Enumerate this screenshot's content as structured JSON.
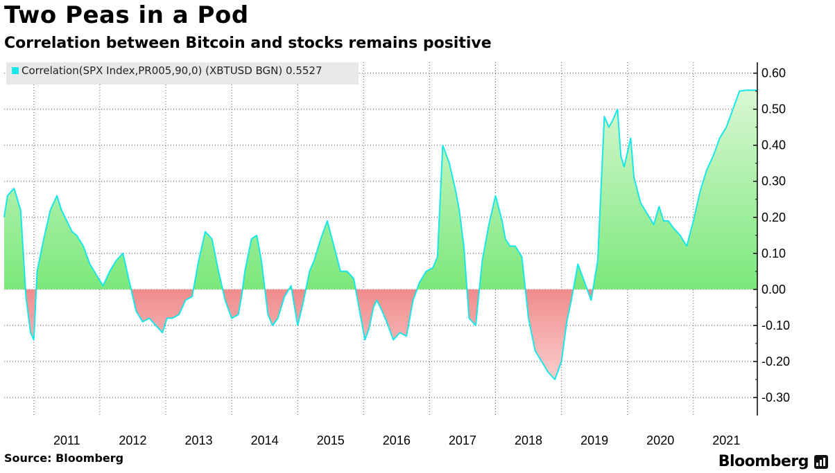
{
  "header": {
    "title": "Two Peas in a Pod",
    "subtitle": "Correlation between Bitcoin and stocks remains positive"
  },
  "footer": {
    "source": "Source: Bloomberg",
    "brand": "Bloomberg"
  },
  "colors": {
    "line": "#19e6e6",
    "positive_fill_top": "#d9f7d3",
    "positive_fill_bottom": "#7be87b",
    "negative_fill_top": "#f08c8c",
    "negative_fill_bottom": "#fbd3d3",
    "grid": "#555555"
  },
  "chart_data": {
    "type": "area",
    "title": "Two Peas in a Pod",
    "subtitle": "Correlation between Bitcoin and stocks remains positive",
    "legend": {
      "label": "Correlation(SPX Index,PR005,90,0) (XBTUSD BGN) 0.5527",
      "placement": "top-left"
    },
    "series": [
      {
        "name": "Correlation(SPX Index,PR005,90,0) (XBTUSD BGN)",
        "last_value": 0.5527,
        "x": [
          2010.55,
          2010.6,
          2010.7,
          2010.8,
          2010.88,
          2010.95,
          2011.0,
          2011.05,
          2011.15,
          2011.25,
          2011.35,
          2011.42,
          2011.5,
          2011.58,
          2011.65,
          2011.75,
          2011.85,
          2011.95,
          2012.05,
          2012.15,
          2012.25,
          2012.35,
          2012.45,
          2012.55,
          2012.65,
          2012.75,
          2012.85,
          2012.95,
          2013.02,
          2013.1,
          2013.2,
          2013.3,
          2013.4,
          2013.5,
          2013.6,
          2013.7,
          2013.8,
          2013.9,
          2014.0,
          2014.1,
          2014.15,
          2014.2,
          2014.3,
          2014.38,
          2014.45,
          2014.55,
          2014.62,
          2014.7,
          2014.8,
          2014.9,
          2015.0,
          2015.08,
          2015.18,
          2015.25,
          2015.35,
          2015.45,
          2015.55,
          2015.65,
          2015.75,
          2015.85,
          2015.95,
          2016.02,
          2016.08,
          2016.15,
          2016.2,
          2016.28,
          2016.35,
          2016.45,
          2016.55,
          2016.65,
          2016.75,
          2016.85,
          2016.95,
          2017.05,
          2017.12,
          2017.2,
          2017.3,
          2017.4,
          2017.45,
          2017.52,
          2017.6,
          2017.7,
          2017.8,
          2017.9,
          2018.0,
          2018.1,
          2018.15,
          2018.22,
          2018.3,
          2018.4,
          2018.5,
          2018.6,
          2018.7,
          2018.8,
          2018.9,
          2019.0,
          2019.08,
          2019.15,
          2019.25,
          2019.35,
          2019.45,
          2019.55,
          2019.65,
          2019.72,
          2019.78,
          2019.85,
          2019.9,
          2019.95,
          2020.0,
          2020.05,
          2020.1,
          2020.2,
          2020.3,
          2020.4,
          2020.48,
          2020.55,
          2020.62,
          2020.7,
          2020.8,
          2020.9,
          2021.0,
          2021.1,
          2021.2,
          2021.3,
          2021.4,
          2021.5,
          2021.6,
          2021.7,
          2021.8,
          2021.9,
          2021.97
        ],
        "values": [
          0.2,
          0.26,
          0.28,
          0.22,
          -0.02,
          -0.12,
          -0.14,
          0.05,
          0.14,
          0.22,
          0.26,
          0.22,
          0.19,
          0.16,
          0.15,
          0.12,
          0.07,
          0.04,
          0.01,
          0.05,
          0.08,
          0.1,
          0.02,
          -0.06,
          -0.09,
          -0.08,
          -0.1,
          -0.12,
          -0.08,
          -0.08,
          -0.07,
          -0.03,
          -0.02,
          0.08,
          0.16,
          0.14,
          0.05,
          -0.03,
          -0.08,
          -0.07,
          -0.02,
          0.05,
          0.14,
          0.15,
          0.08,
          -0.07,
          -0.1,
          -0.08,
          -0.02,
          0.01,
          -0.1,
          -0.04,
          0.05,
          0.08,
          0.14,
          0.19,
          0.12,
          0.05,
          0.05,
          0.03,
          -0.07,
          -0.14,
          -0.11,
          -0.05,
          -0.03,
          -0.06,
          -0.09,
          -0.14,
          -0.12,
          -0.13,
          -0.03,
          0.02,
          0.05,
          0.06,
          0.09,
          0.4,
          0.35,
          0.27,
          0.22,
          0.12,
          -0.08,
          -0.1,
          0.08,
          0.18,
          0.26,
          0.19,
          0.14,
          0.12,
          0.12,
          0.09,
          -0.08,
          -0.17,
          -0.2,
          -0.23,
          -0.25,
          -0.2,
          -0.09,
          -0.03,
          0.07,
          0.02,
          -0.03,
          0.08,
          0.48,
          0.45,
          0.47,
          0.5,
          0.37,
          0.34,
          0.38,
          0.42,
          0.31,
          0.24,
          0.21,
          0.18,
          0.23,
          0.19,
          0.19,
          0.17,
          0.15,
          0.12,
          0.19,
          0.27,
          0.33,
          0.37,
          0.42,
          0.45,
          0.5,
          0.55,
          0.5527,
          0.5527,
          0.5527
        ]
      }
    ],
    "x_tick_labels": [
      "2011",
      "2012",
      "2013",
      "2014",
      "2015",
      "2016",
      "2017",
      "2018",
      "2019",
      "2020",
      "2021"
    ],
    "y_tick_labels": [
      "0.60",
      "0.50",
      "0.40",
      "0.30",
      "0.20",
      "0.10",
      "0.00",
      "-0.10",
      "-0.20",
      "-0.30"
    ],
    "y_ticks": [
      0.6,
      0.5,
      0.4,
      0.3,
      0.2,
      0.1,
      0.0,
      -0.1,
      -0.2,
      -0.3
    ],
    "xlim": [
      2010.55,
      2021.97
    ],
    "ylim": [
      -0.35,
      0.63
    ],
    "xlabel": "",
    "ylabel": "",
    "grid": true,
    "y_axis_side": "right"
  }
}
